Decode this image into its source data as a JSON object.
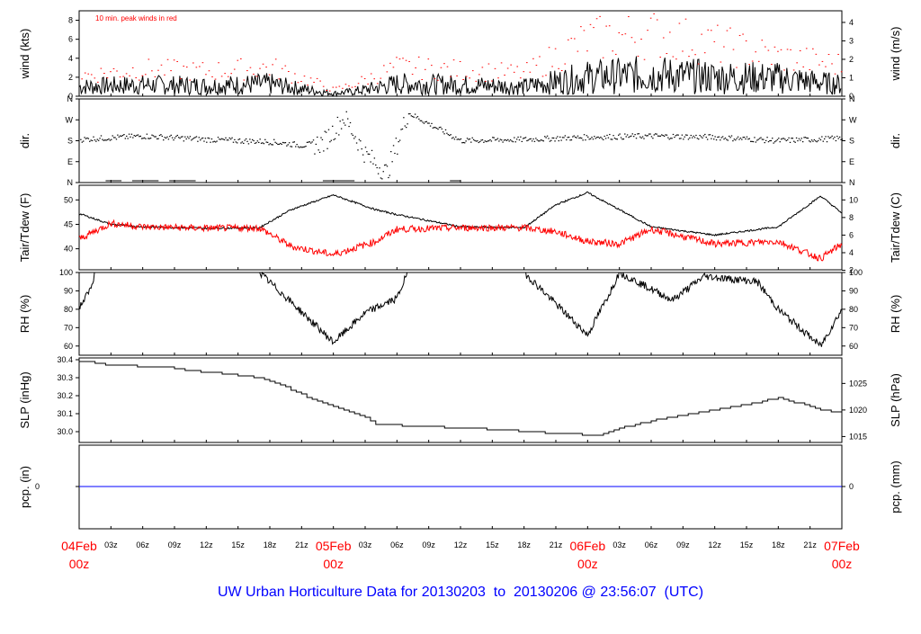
{
  "title": "UW Urban Horticulture Data for 20130203  to  20130206 @ 23:56:07  (UTC)",
  "colors": {
    "axis": "#000000",
    "red": "#ff0000",
    "blue": "#0000ff",
    "title": "#0000ff"
  },
  "chart_data": [
    {
      "type": "line",
      "ylabel": "wind (kts)",
      "ylabel_right": "wind (m/s)",
      "annotation": "10 min. peak winds in red",
      "ylim": [
        0,
        9
      ],
      "yticks": [
        "0",
        "2",
        "4",
        "6",
        "8"
      ],
      "yticks_right": [
        "0",
        "1",
        "2",
        "3",
        "4"
      ],
      "x_hours": [
        0,
        6,
        12,
        18,
        22,
        24,
        26,
        30,
        36,
        42,
        48,
        54,
        60,
        66,
        72
      ],
      "series": [
        {
          "name": "mean wind",
          "color": "#000000",
          "values": [
            1.0,
            1.2,
            1.1,
            1.3,
            0.6,
            0.3,
            0.5,
            1.3,
            1.2,
            1.0,
            2.0,
            2.3,
            2.0,
            1.9,
            1.2
          ]
        },
        {
          "name": "peak wind",
          "color": "#ff0000",
          "values": [
            2.0,
            2.6,
            2.4,
            2.8,
            1.4,
            0.6,
            1.2,
            2.8,
            2.5,
            2.2,
            5.5,
            6.0,
            5.0,
            3.8,
            3.0
          ]
        }
      ]
    },
    {
      "type": "scatter",
      "ylabel": "dir.",
      "ylabel_right": "dir.",
      "yticks": [
        "N",
        "E",
        "S",
        "W",
        "N"
      ],
      "yticks_right": [
        "N",
        "E",
        "S",
        "W",
        "N"
      ],
      "ylim": [
        0,
        360
      ],
      "x_hours": [
        0,
        6,
        12,
        18,
        21,
        23,
        25,
        27,
        29,
        31,
        36,
        42,
        48,
        54,
        60,
        66,
        72
      ],
      "series": [
        {
          "name": "direction",
          "color": "#000000",
          "values": [
            185,
            200,
            185,
            175,
            160,
            170,
            280,
            120,
            40,
            300,
            180,
            185,
            195,
            200,
            195,
            180,
            190
          ]
        }
      ]
    },
    {
      "type": "line",
      "ylabel": "Tair/Tdew (F)",
      "ylabel_right": "Tair/Tdew (C)",
      "ylim": [
        35.7,
        53
      ],
      "yticks": [
        "40",
        "45",
        "50"
      ],
      "yticks_right": [
        "2",
        "4",
        "6",
        "8",
        "10"
      ],
      "x_hours": [
        0,
        3,
        6,
        12,
        17,
        20,
        24,
        28,
        30,
        36,
        42,
        45,
        48,
        51,
        54,
        60,
        66,
        70,
        72
      ],
      "series": [
        {
          "name": "Tair",
          "color": "#000000",
          "values": [
            47.2,
            45.0,
            44.5,
            44.2,
            44.3,
            48.0,
            51.0,
            48.0,
            47.0,
            44.5,
            44.3,
            49.0,
            51.5,
            48.0,
            44.5,
            42.8,
            44.5,
            50.8,
            47.3
          ]
        },
        {
          "name": "Tdew",
          "color": "#ff0000",
          "values": [
            42.0,
            45.2,
            44.5,
            44.2,
            44.3,
            40.5,
            38.8,
            41.5,
            44.0,
            44.3,
            44.3,
            43.5,
            41.5,
            41.0,
            44.0,
            41.0,
            41.5,
            38.0,
            41.0
          ]
        }
      ]
    },
    {
      "type": "line",
      "ylabel": "RH (%)",
      "ylabel_right": "RH (%)",
      "ylim": [
        55,
        100
      ],
      "yticks": [
        "60",
        "70",
        "80",
        "90",
        "100"
      ],
      "yticks_right": [
        "60",
        "70",
        "80",
        "90",
        "100"
      ],
      "x_hours": [
        0,
        1,
        1.5,
        17,
        20,
        24,
        27,
        30,
        31,
        40,
        42,
        48,
        50,
        51,
        56,
        59,
        64,
        66,
        70,
        72
      ],
      "series": [
        {
          "name": "RH",
          "color": "#000000",
          "values": [
            81,
            90,
            100,
            100,
            84,
            62,
            78,
            86,
            100,
            100,
            100,
            66,
            88,
            100,
            85,
            98,
            95,
            80,
            60,
            80
          ]
        }
      ]
    },
    {
      "type": "line",
      "ylabel": "SLP (inHg)",
      "ylabel_right": "SLP (hPa)",
      "ylim": [
        29.94,
        30.41
      ],
      "yticks": [
        "30.0",
        "30.1",
        "30.2",
        "30.3",
        "30.4"
      ],
      "yticks_right": [
        "1015",
        "1020",
        "1025"
      ],
      "x_hours": [
        0,
        1,
        2.5,
        8,
        10,
        14,
        17,
        19,
        22,
        24,
        27,
        28,
        36,
        40,
        45,
        49,
        51,
        54,
        57,
        60,
        64,
        66,
        70,
        72
      ],
      "series": [
        {
          "name": "SLP",
          "color": "#000000",
          "values": [
            30.39,
            30.39,
            30.37,
            30.36,
            30.34,
            30.32,
            30.3,
            30.26,
            30.18,
            30.14,
            30.08,
            30.04,
            30.02,
            30.01,
            29.99,
            29.98,
            30.02,
            30.06,
            30.09,
            30.12,
            30.16,
            30.19,
            30.12,
            30.1
          ]
        }
      ]
    },
    {
      "type": "line",
      "ylabel": "pcp. (in)",
      "ylabel_right": "pcp. (mm)",
      "yticks": [
        "0"
      ],
      "yticks_right": [
        "0"
      ],
      "series": [
        {
          "name": "precip",
          "color": "#0000ff",
          "values": [
            0,
            0
          ]
        }
      ]
    }
  ],
  "x_axis": {
    "ticks": [
      "04Feb",
      "03z",
      "06z",
      "09z",
      "12z",
      "15z",
      "18z",
      "21z",
      "05Feb",
      "03z",
      "06z",
      "09z",
      "12z",
      "15z",
      "18z",
      "21z",
      "06Feb",
      "03z",
      "06z",
      "09z",
      "12z",
      "15z",
      "18z",
      "21z",
      "07Feb"
    ],
    "day_labels": [
      {
        "date": "04Feb",
        "hour": "00z"
      },
      {
        "date": "05Feb",
        "hour": "00z"
      },
      {
        "date": "06Feb",
        "hour": "00z"
      },
      {
        "date": "07Feb",
        "hour": "00z"
      }
    ]
  }
}
